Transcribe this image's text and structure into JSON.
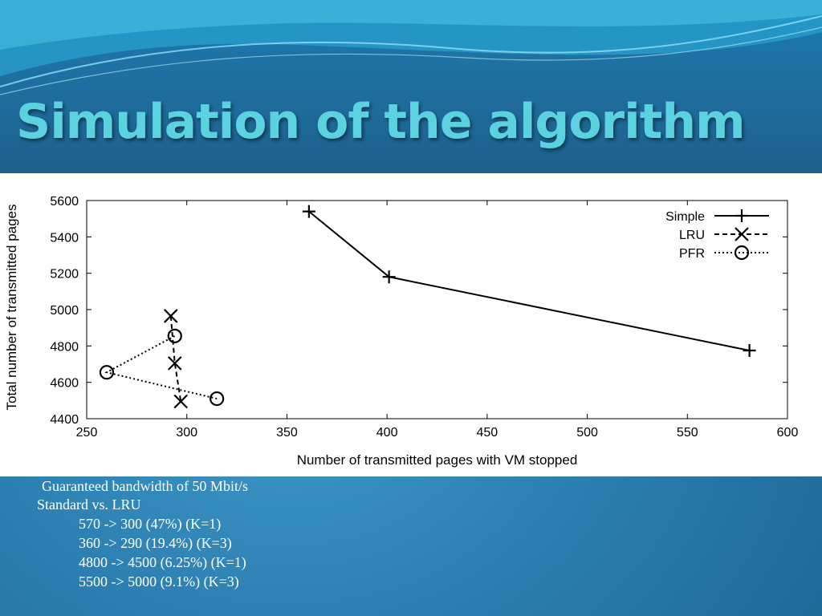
{
  "slide": {
    "title": "Simulation of the algorithm",
    "colors": {
      "title": "#5ad2e0",
      "background": "#2a7cae",
      "text": "#ffffff"
    }
  },
  "notes": {
    "bandwidth": "Guaranteed bandwidth of 50 Mbit/s",
    "comparison": "Standard vs. LRU",
    "items": [
      "570 -> 300 (47%) (K=1)",
      "360 -> 290 (19.4%) (K=3)",
      "4800 -> 4500 (6.25%) (K=1)",
      "5500 -> 5000 (9.1%) (K=3)"
    ]
  },
  "chart_data": {
    "type": "line",
    "title": "",
    "xlabel": "Number of transmitted pages with VM stopped",
    "ylabel": "Total number of transmitted pages",
    "xlim": [
      250,
      600
    ],
    "ylim": [
      4400,
      5600
    ],
    "xticks": [
      250,
      300,
      350,
      400,
      450,
      500,
      550,
      600
    ],
    "yticks": [
      4400,
      4600,
      4800,
      5000,
      5200,
      5400,
      5600
    ],
    "grid": false,
    "legend_position": "top-right",
    "series": [
      {
        "name": "Simple",
        "line_style": "solid",
        "marker": "plus",
        "x": [
          361,
          401,
          581
        ],
        "y": [
          5540,
          5180,
          4775
        ]
      },
      {
        "name": "LRU",
        "line_style": "dashed",
        "marker": "cross",
        "x": [
          292,
          294,
          297
        ],
        "y": [
          4965,
          4705,
          4495
        ]
      },
      {
        "name": "PFR",
        "line_style": "dotted",
        "marker": "circle",
        "x": [
          315,
          260,
          294
        ],
        "y": [
          4510,
          4655,
          4855
        ]
      }
    ]
  }
}
